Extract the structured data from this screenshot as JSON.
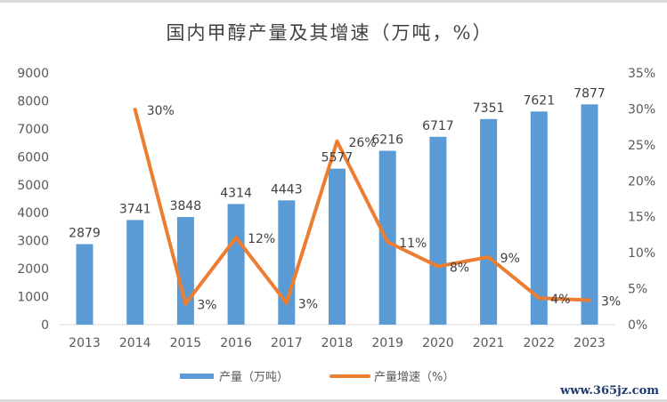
{
  "chart_data": {
    "type": "bar+line",
    "title": "国内甲醇产量及其增速（万吨，%）",
    "categories": [
      "2013",
      "2014",
      "2015",
      "2016",
      "2017",
      "2018",
      "2019",
      "2020",
      "2021",
      "2022",
      "2023"
    ],
    "series": [
      {
        "name": "产量（万吨）",
        "type": "bar",
        "axis": "left",
        "color": "#5b9bd5",
        "values": [
          2879,
          3741,
          3848,
          4314,
          4443,
          5577,
          6216,
          6717,
          7351,
          7621,
          7877
        ],
        "labels": [
          "2879",
          "3741",
          "3848",
          "4314",
          "4443",
          "5577",
          "6216",
          "6717",
          "7351",
          "7621",
          "7877"
        ]
      },
      {
        "name": "产量增速（%）",
        "type": "line",
        "axis": "right",
        "color": "#ed7d31",
        "values": [
          null,
          29.9,
          2.9,
          12.1,
          3.0,
          25.5,
          11.5,
          8.1,
          9.4,
          3.7,
          3.4
        ],
        "labels": [
          null,
          "30%",
          "3%",
          "12%",
          "3%",
          "26%",
          "11%",
          "8%",
          "9%",
          "4%",
          "3%"
        ]
      }
    ],
    "left_axis": {
      "ylim": [
        0,
        9000
      ],
      "ticks": [
        "0",
        "1000",
        "2000",
        "3000",
        "4000",
        "5000",
        "6000",
        "7000",
        "8000",
        "9000"
      ]
    },
    "right_axis": {
      "ylim": [
        0,
        35
      ],
      "ticks": [
        "0%",
        "5%",
        "10%",
        "15%",
        "20%",
        "25%",
        "30%",
        "35%"
      ]
    },
    "grid": false,
    "legend": "bottom"
  },
  "watermark": "www.365jz.com"
}
